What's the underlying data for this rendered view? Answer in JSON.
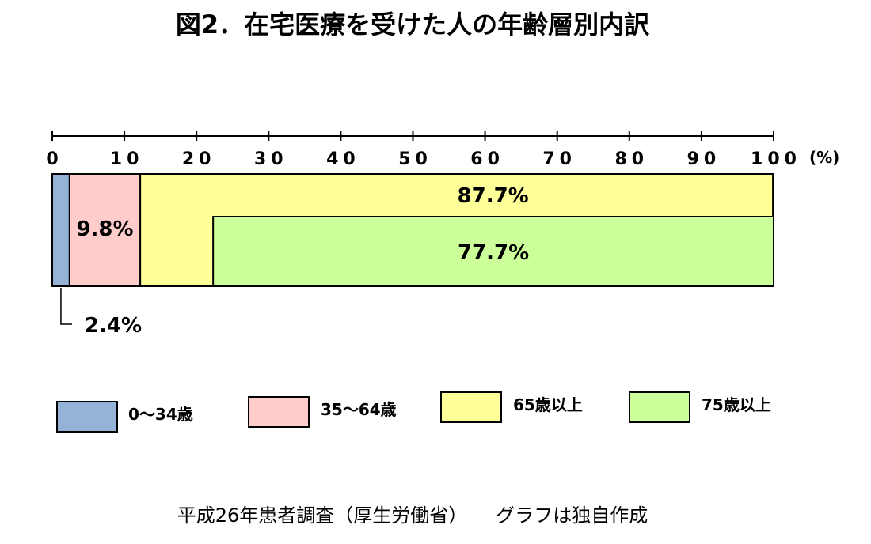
{
  "chart_data": {
    "type": "bar",
    "orientation": "horizontal",
    "stacked": true,
    "title": "図2．在宅医療を受けた人の年齢層別内訳",
    "x_axis": {
      "ticks": [
        "0",
        "10",
        "20",
        "30",
        "40",
        "50",
        "60",
        "70",
        "80",
        "90",
        "100"
      ],
      "unit": "(%)",
      "range": [
        0,
        100
      ],
      "position": "top"
    },
    "segments": [
      {
        "name": "0〜34歳",
        "value": 2.4,
        "label": "2.4%",
        "color": "#95b3d7"
      },
      {
        "name": "35〜64歳",
        "value": 9.8,
        "label": "9.8%",
        "color": "#ffcccc"
      },
      {
        "name": "65歳以上",
        "value": 87.7,
        "label": "87.7%",
        "color": "#ffff99"
      }
    ],
    "subset_segment": {
      "name": "75歳以上",
      "value": 77.7,
      "label": "77.7%",
      "color": "#ccff99",
      "within": "65歳以上"
    },
    "legend": {
      "placement": "bottom",
      "items": [
        {
          "label": "0〜34歳",
          "color": "#95b3d7"
        },
        {
          "label": "35〜64歳",
          "color": "#ffcccc"
        },
        {
          "label": "65歳以上",
          "color": "#ffff99"
        },
        {
          "label": "75歳以上",
          "color": "#ccff99"
        }
      ]
    },
    "source": "平成26年患者調査（厚生労働省）　　グラフは独自作成"
  }
}
